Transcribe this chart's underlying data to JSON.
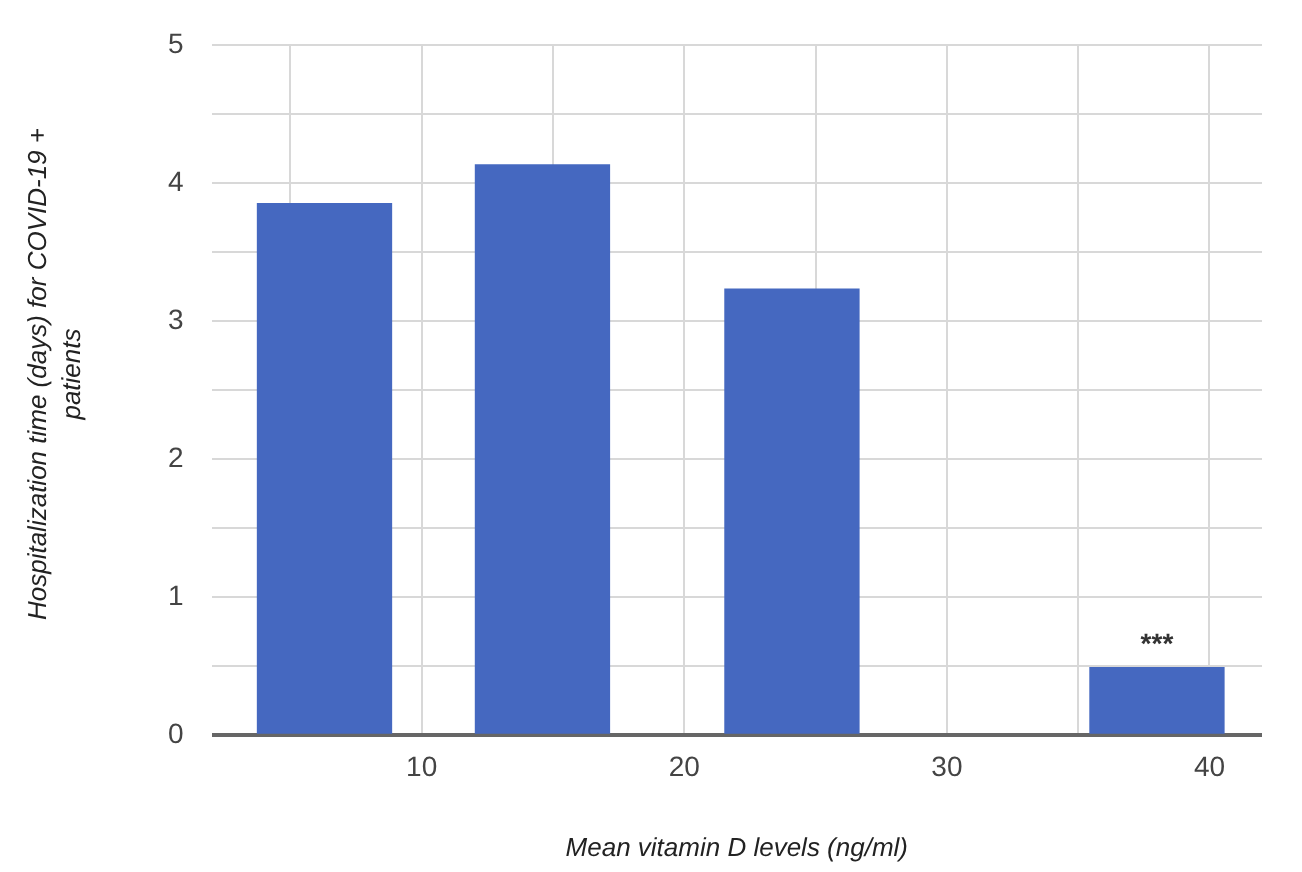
{
  "chart_data": {
    "type": "bar",
    "xlabel": "Mean vitamin D levels (ng/ml)",
    "ylabel": "Hospitalization time (days) for COVID-19 + patients",
    "x": [
      6.3,
      14.6,
      24.1,
      38.0
    ],
    "values": [
      3.85,
      4.13,
      3.23,
      0.49
    ],
    "color": "#4568c0",
    "xlim": [
      2,
      42
    ],
    "xticks": [
      {
        "value": 5,
        "label": null
      },
      10,
      {
        "value": 15,
        "label": null
      },
      20,
      {
        "value": 25,
        "label": null
      },
      30,
      {
        "value": 35,
        "label": null
      },
      40
    ],
    "ylim": [
      0,
      5
    ],
    "yticks": [
      0,
      {
        "value": 0.5,
        "label": null
      },
      1,
      {
        "value": 1.5,
        "label": null
      },
      2,
      {
        "value": 2.5,
        "label": null
      },
      3,
      {
        "value": 3.5,
        "label": null
      },
      4,
      {
        "value": 4.5,
        "label": null
      },
      5
    ],
    "annotations": [
      {
        "text": "***",
        "x": 38.0,
        "y": 0.49
      }
    ],
    "grid": true
  }
}
